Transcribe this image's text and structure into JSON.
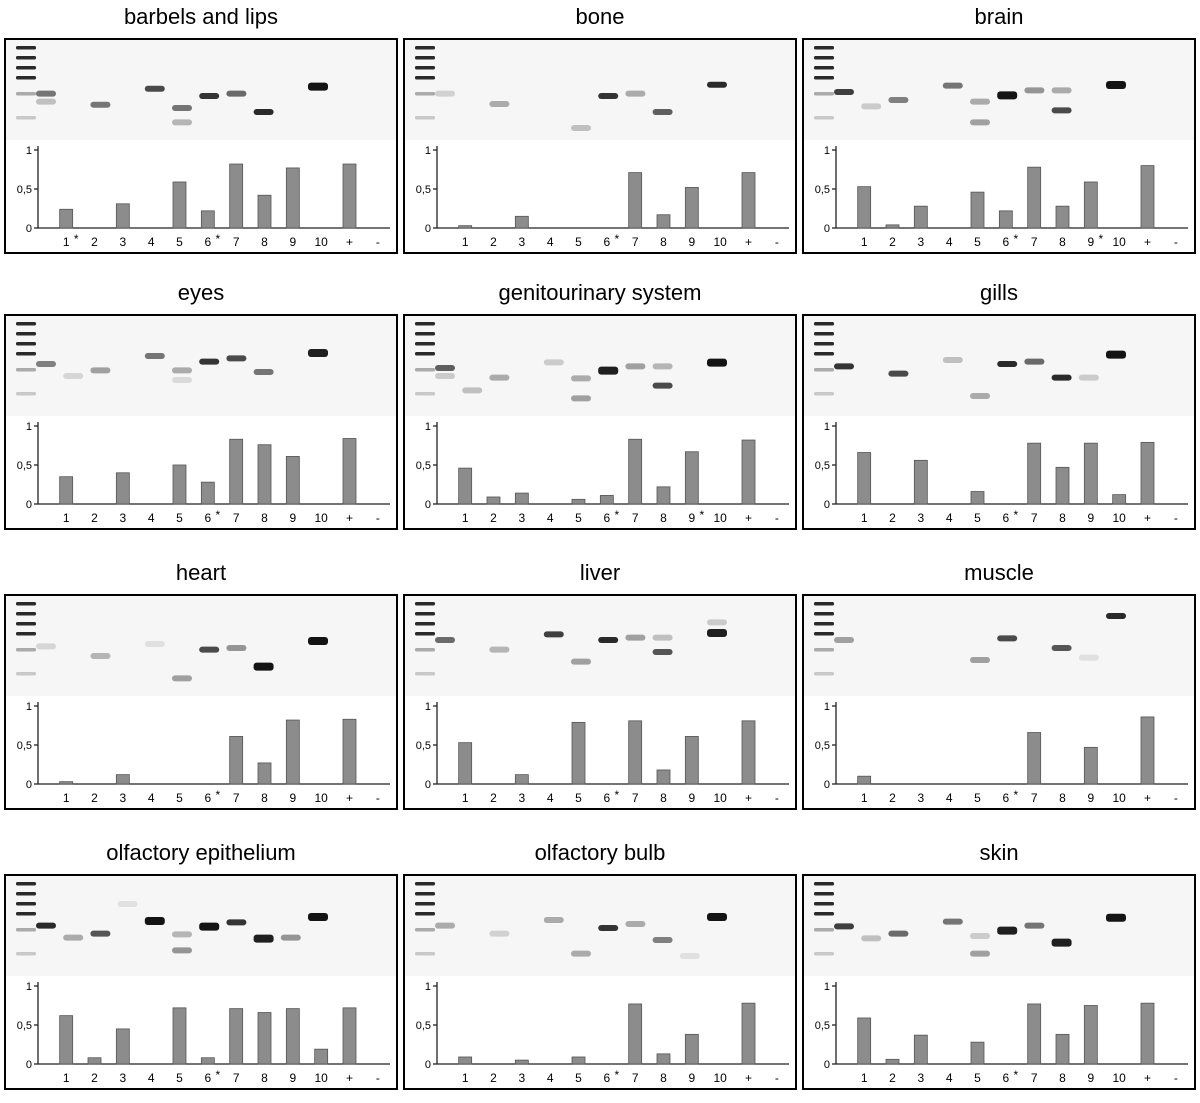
{
  "panel_titles": [
    "barbels and lips",
    "bone",
    "brain",
    "eyes",
    "genitourinary system",
    "gills",
    "heart",
    "liver",
    "muscle",
    "olfactory epithelium",
    "olfactory bulb",
    "skin"
  ],
  "chart_data": [
    {
      "type": "bar",
      "title": "barbels and lips",
      "categories": [
        "1",
        "2",
        "3",
        "4",
        "5",
        "6",
        "7",
        "8",
        "9",
        "10",
        "+",
        "-"
      ],
      "values": [
        0.24,
        0,
        0.31,
        0,
        0.59,
        0.22,
        0.82,
        0.42,
        0.77,
        0,
        0.82,
        0
      ],
      "asterisk_lanes": [
        "1",
        "6"
      ],
      "ylim": [
        0,
        1
      ],
      "yticks": [
        "0",
        "0,5",
        "1"
      ],
      "bar_color": "#8c8c8c",
      "bands": [
        {
          "lane": 1,
          "level": 0.52,
          "intensity": 0.55
        },
        {
          "lane": 1,
          "level": 0.62,
          "intensity": 0.2
        },
        {
          "lane": 3,
          "level": 0.66,
          "intensity": 0.55
        },
        {
          "lane": 5,
          "level": 0.46,
          "intensity": 0.75
        },
        {
          "lane": 6,
          "level": 0.7,
          "intensity": 0.55
        },
        {
          "lane": 6,
          "level": 0.88,
          "intensity": 0.25
        },
        {
          "lane": 7,
          "level": 0.55,
          "intensity": 0.85
        },
        {
          "lane": 8,
          "level": 0.52,
          "intensity": 0.6
        },
        {
          "lane": 9,
          "level": 0.75,
          "intensity": 0.9
        },
        {
          "lane": 11,
          "level": 0.42,
          "intensity": 1
        }
      ]
    },
    {
      "type": "bar",
      "title": "bone",
      "categories": [
        "1",
        "2",
        "3",
        "4",
        "5",
        "6",
        "7",
        "8",
        "9",
        "10",
        "+",
        "-"
      ],
      "values": [
        0.03,
        0,
        0.15,
        0,
        0,
        0,
        0.71,
        0.17,
        0.52,
        0,
        0.71,
        0
      ],
      "asterisk_lanes": [
        "6"
      ],
      "ylim": [
        0,
        1
      ],
      "yticks": [
        "0",
        "0,5",
        "1"
      ],
      "bar_color": "#8c8c8c",
      "bands": [
        {
          "lane": 1,
          "level": 0.52,
          "intensity": 0.12
        },
        {
          "lane": 3,
          "level": 0.65,
          "intensity": 0.3
        },
        {
          "lane": 6,
          "level": 0.95,
          "intensity": 0.2
        },
        {
          "lane": 7,
          "level": 0.55,
          "intensity": 0.85
        },
        {
          "lane": 8,
          "level": 0.52,
          "intensity": 0.3
        },
        {
          "lane": 9,
          "level": 0.75,
          "intensity": 0.65
        },
        {
          "lane": 11,
          "level": 0.41,
          "intensity": 0.9
        }
      ]
    },
    {
      "type": "bar",
      "title": "brain",
      "categories": [
        "1",
        "2",
        "3",
        "4",
        "5",
        "6",
        "7",
        "8",
        "9",
        "10",
        "+",
        "-"
      ],
      "values": [
        0.53,
        0.04,
        0.28,
        0,
        0.46,
        0.22,
        0.78,
        0.28,
        0.59,
        0,
        0.8,
        0
      ],
      "asterisk_lanes": [
        "6",
        "9"
      ],
      "ylim": [
        0,
        1
      ],
      "yticks": [
        "0",
        "0,5",
        "1"
      ],
      "bar_color": "#8c8c8c",
      "bands": [
        {
          "lane": 1,
          "level": 0.5,
          "intensity": 0.8
        },
        {
          "lane": 2,
          "level": 0.68,
          "intensity": 0.15
        },
        {
          "lane": 3,
          "level": 0.6,
          "intensity": 0.5
        },
        {
          "lane": 5,
          "level": 0.42,
          "intensity": 0.55
        },
        {
          "lane": 6,
          "level": 0.62,
          "intensity": 0.3
        },
        {
          "lane": 6,
          "level": 0.88,
          "intensity": 0.35
        },
        {
          "lane": 7,
          "level": 0.53,
          "intensity": 1
        },
        {
          "lane": 8,
          "level": 0.48,
          "intensity": 0.4
        },
        {
          "lane": 9,
          "level": 0.48,
          "intensity": 0.3
        },
        {
          "lane": 9,
          "level": 0.73,
          "intensity": 0.75
        },
        {
          "lane": 11,
          "level": 0.4,
          "intensity": 1
        }
      ]
    },
    {
      "type": "bar",
      "title": "eyes",
      "categories": [
        "1",
        "2",
        "3",
        "4",
        "5",
        "6",
        "7",
        "8",
        "9",
        "10",
        "+",
        "-"
      ],
      "values": [
        0.35,
        0,
        0.4,
        0,
        0.5,
        0.28,
        0.83,
        0.76,
        0.61,
        0,
        0.84,
        0
      ],
      "asterisk_lanes": [
        "6"
      ],
      "ylim": [
        0,
        1
      ],
      "yticks": [
        "0",
        "0,5",
        "1"
      ],
      "bar_color": "#8c8c8c",
      "bands": [
        {
          "lane": 1,
          "level": 0.45,
          "intensity": 0.5
        },
        {
          "lane": 2,
          "level": 0.6,
          "intensity": 0.1
        },
        {
          "lane": 3,
          "level": 0.53,
          "intensity": 0.35
        },
        {
          "lane": 5,
          "level": 0.35,
          "intensity": 0.55
        },
        {
          "lane": 6,
          "level": 0.53,
          "intensity": 0.3
        },
        {
          "lane": 6,
          "level": 0.65,
          "intensity": 0.08
        },
        {
          "lane": 7,
          "level": 0.42,
          "intensity": 0.85
        },
        {
          "lane": 8,
          "level": 0.38,
          "intensity": 0.75
        },
        {
          "lane": 9,
          "level": 0.55,
          "intensity": 0.55
        },
        {
          "lane": 11,
          "level": 0.3,
          "intensity": 0.95
        }
      ]
    },
    {
      "type": "bar",
      "title": "genitourinary system",
      "categories": [
        "1",
        "2",
        "3",
        "4",
        "5",
        "6",
        "7",
        "8",
        "9",
        "10",
        "+",
        "-"
      ],
      "values": [
        0.46,
        0.09,
        0.14,
        0,
        0.06,
        0.11,
        0.83,
        0.22,
        0.67,
        0,
        0.82,
        0
      ],
      "asterisk_lanes": [
        "6",
        "9"
      ],
      "ylim": [
        0,
        1
      ],
      "yticks": [
        "0",
        "0,5",
        "1"
      ],
      "bar_color": "#8c8c8c",
      "bands": [
        {
          "lane": 1,
          "level": 0.5,
          "intensity": 0.65
        },
        {
          "lane": 1,
          "level": 0.6,
          "intensity": 0.15
        },
        {
          "lane": 2,
          "level": 0.78,
          "intensity": 0.2
        },
        {
          "lane": 3,
          "level": 0.62,
          "intensity": 0.3
        },
        {
          "lane": 5,
          "level": 0.43,
          "intensity": 0.15
        },
        {
          "lane": 6,
          "level": 0.63,
          "intensity": 0.3
        },
        {
          "lane": 6,
          "level": 0.88,
          "intensity": 0.35
        },
        {
          "lane": 7,
          "level": 0.52,
          "intensity": 0.95
        },
        {
          "lane": 8,
          "level": 0.48,
          "intensity": 0.35
        },
        {
          "lane": 9,
          "level": 0.48,
          "intensity": 0.25
        },
        {
          "lane": 9,
          "level": 0.72,
          "intensity": 0.75
        },
        {
          "lane": 11,
          "level": 0.42,
          "intensity": 1
        }
      ]
    },
    {
      "type": "bar",
      "title": "gills",
      "categories": [
        "1",
        "2",
        "3",
        "4",
        "5",
        "6",
        "7",
        "8",
        "9",
        "10",
        "+",
        "-"
      ],
      "values": [
        0.66,
        0,
        0.56,
        0,
        0.16,
        0,
        0.78,
        0.47,
        0.78,
        0.12,
        0.79,
        0
      ],
      "asterisk_lanes": [
        "6"
      ],
      "ylim": [
        0,
        1
      ],
      "yticks": [
        "0",
        "0,5",
        "1"
      ],
      "bar_color": "#8c8c8c",
      "bands": [
        {
          "lane": 1,
          "level": 0.48,
          "intensity": 0.85
        },
        {
          "lane": 3,
          "level": 0.57,
          "intensity": 0.75
        },
        {
          "lane": 5,
          "level": 0.4,
          "intensity": 0.2
        },
        {
          "lane": 6,
          "level": 0.85,
          "intensity": 0.3
        },
        {
          "lane": 7,
          "level": 0.45,
          "intensity": 0.9
        },
        {
          "lane": 8,
          "level": 0.42,
          "intensity": 0.6
        },
        {
          "lane": 9,
          "level": 0.62,
          "intensity": 0.9
        },
        {
          "lane": 10,
          "level": 0.62,
          "intensity": 0.15
        },
        {
          "lane": 11,
          "level": 0.32,
          "intensity": 1
        }
      ]
    },
    {
      "type": "bar",
      "title": "heart",
      "categories": [
        "1",
        "2",
        "3",
        "4",
        "5",
        "6",
        "7",
        "8",
        "9",
        "10",
        "+",
        "-"
      ],
      "values": [
        0.03,
        0,
        0.12,
        0,
        0,
        0,
        0.61,
        0.27,
        0.82,
        0,
        0.83,
        0
      ],
      "asterisk_lanes": [
        "6"
      ],
      "ylim": [
        0,
        1
      ],
      "yticks": [
        "0",
        "0,5",
        "1"
      ],
      "bar_color": "#8c8c8c",
      "bands": [
        {
          "lane": 1,
          "level": 0.48,
          "intensity": 0.1
        },
        {
          "lane": 3,
          "level": 0.6,
          "intensity": 0.25
        },
        {
          "lane": 5,
          "level": 0.45,
          "intensity": 0.05
        },
        {
          "lane": 6,
          "level": 0.88,
          "intensity": 0.35
        },
        {
          "lane": 7,
          "level": 0.52,
          "intensity": 0.75
        },
        {
          "lane": 8,
          "level": 0.5,
          "intensity": 0.4
        },
        {
          "lane": 9,
          "level": 0.72,
          "intensity": 1
        },
        {
          "lane": 11,
          "level": 0.4,
          "intensity": 1
        }
      ]
    },
    {
      "type": "bar",
      "title": "liver",
      "categories": [
        "1",
        "2",
        "3",
        "4",
        "5",
        "6",
        "7",
        "8",
        "9",
        "10",
        "+",
        "-"
      ],
      "values": [
        0.53,
        0,
        0.12,
        0,
        0.79,
        0,
        0.81,
        0.18,
        0.61,
        0,
        0.81,
        0
      ],
      "asterisk_lanes": [
        "6"
      ],
      "ylim": [
        0,
        1
      ],
      "yticks": [
        "0",
        "0,5",
        "1"
      ],
      "bar_color": "#8c8c8c",
      "bands": [
        {
          "lane": 1,
          "level": 0.4,
          "intensity": 0.6
        },
        {
          "lane": 3,
          "level": 0.52,
          "intensity": 0.25
        },
        {
          "lane": 5,
          "level": 0.33,
          "intensity": 0.8
        },
        {
          "lane": 6,
          "level": 0.67,
          "intensity": 0.35
        },
        {
          "lane": 7,
          "level": 0.4,
          "intensity": 0.9
        },
        {
          "lane": 8,
          "level": 0.37,
          "intensity": 0.35
        },
        {
          "lane": 9,
          "level": 0.37,
          "intensity": 0.2
        },
        {
          "lane": 9,
          "level": 0.55,
          "intensity": 0.7
        },
        {
          "lane": 11,
          "level": 0.18,
          "intensity": 0.15
        },
        {
          "lane": 11,
          "level": 0.3,
          "intensity": 0.95
        }
      ]
    },
    {
      "type": "bar",
      "title": "muscle",
      "categories": [
        "1",
        "2",
        "3",
        "4",
        "5",
        "6",
        "7",
        "8",
        "9",
        "10",
        "+",
        "-"
      ],
      "values": [
        0.1,
        0,
        0,
        0,
        0,
        0,
        0.66,
        0,
        0.47,
        0,
        0.86,
        0
      ],
      "asterisk_lanes": [
        "6"
      ],
      "ylim": [
        0,
        1
      ],
      "yticks": [
        "0",
        "0,5",
        "1"
      ],
      "bar_color": "#8c8c8c",
      "bands": [
        {
          "lane": 1,
          "level": 0.4,
          "intensity": 0.35
        },
        {
          "lane": 6,
          "level": 0.65,
          "intensity": 0.35
        },
        {
          "lane": 7,
          "level": 0.38,
          "intensity": 0.75
        },
        {
          "lane": 9,
          "level": 0.5,
          "intensity": 0.7
        },
        {
          "lane": 10,
          "level": 0.62,
          "intensity": 0.05
        },
        {
          "lane": 11,
          "level": 0.1,
          "intensity": 0.9
        }
      ]
    },
    {
      "type": "bar",
      "title": "olfactory epithelium",
      "categories": [
        "1",
        "2",
        "3",
        "4",
        "5",
        "6",
        "7",
        "8",
        "9",
        "10",
        "+",
        "-"
      ],
      "values": [
        0.62,
        0.08,
        0.45,
        0,
        0.72,
        0.08,
        0.71,
        0.66,
        0.71,
        0.19,
        0.72,
        0
      ],
      "asterisk_lanes": [
        "6"
      ],
      "ylim": [
        0,
        1
      ],
      "yticks": [
        "0",
        "0,5",
        "1"
      ],
      "bar_color": "#8c8c8c",
      "bands": [
        {
          "lane": 1,
          "level": 0.47,
          "intensity": 0.9
        },
        {
          "lane": 2,
          "level": 0.62,
          "intensity": 0.3
        },
        {
          "lane": 3,
          "level": 0.57,
          "intensity": 0.7
        },
        {
          "lane": 4,
          "level": 0.2,
          "intensity": 0.05
        },
        {
          "lane": 5,
          "level": 0.4,
          "intensity": 1
        },
        {
          "lane": 6,
          "level": 0.58,
          "intensity": 0.25
        },
        {
          "lane": 6,
          "level": 0.78,
          "intensity": 0.4
        },
        {
          "lane": 7,
          "level": 0.47,
          "intensity": 1
        },
        {
          "lane": 8,
          "level": 0.43,
          "intensity": 0.85
        },
        {
          "lane": 9,
          "level": 0.62,
          "intensity": 0.95
        },
        {
          "lane": 10,
          "level": 0.62,
          "intensity": 0.4
        },
        {
          "lane": 11,
          "level": 0.35,
          "intensity": 1
        }
      ]
    },
    {
      "type": "bar",
      "title": "olfactory bulb",
      "categories": [
        "1",
        "2",
        "3",
        "4",
        "5",
        "6",
        "7",
        "8",
        "9",
        "10",
        "+",
        "-"
      ],
      "values": [
        0.09,
        0,
        0.05,
        0,
        0.09,
        0,
        0.77,
        0.13,
        0.38,
        0,
        0.78,
        0
      ],
      "asterisk_lanes": [
        "6"
      ],
      "ylim": [
        0,
        1
      ],
      "yticks": [
        "0",
        "0,5",
        "1"
      ],
      "bar_color": "#8c8c8c",
      "bands": [
        {
          "lane": 1,
          "level": 0.47,
          "intensity": 0.3
        },
        {
          "lane": 3,
          "level": 0.57,
          "intensity": 0.12
        },
        {
          "lane": 5,
          "level": 0.4,
          "intensity": 0.3
        },
        {
          "lane": 6,
          "level": 0.82,
          "intensity": 0.3
        },
        {
          "lane": 7,
          "level": 0.5,
          "intensity": 0.85
        },
        {
          "lane": 8,
          "level": 0.45,
          "intensity": 0.3
        },
        {
          "lane": 9,
          "level": 0.65,
          "intensity": 0.5
        },
        {
          "lane": 10,
          "level": 0.85,
          "intensity": 0.05
        },
        {
          "lane": 11,
          "level": 0.35,
          "intensity": 1
        }
      ]
    },
    {
      "type": "bar",
      "title": "skin",
      "categories": [
        "1",
        "2",
        "3",
        "4",
        "5",
        "6",
        "7",
        "8",
        "9",
        "10",
        "+",
        "-"
      ],
      "values": [
        0.59,
        0.06,
        0.37,
        0,
        0.28,
        0,
        0.77,
        0.38,
        0.75,
        0,
        0.78,
        0
      ],
      "asterisk_lanes": [
        "6"
      ],
      "ylim": [
        0,
        1
      ],
      "yticks": [
        "0",
        "0,5",
        "1"
      ],
      "bar_color": "#8c8c8c",
      "bands": [
        {
          "lane": 1,
          "level": 0.48,
          "intensity": 0.8
        },
        {
          "lane": 2,
          "level": 0.63,
          "intensity": 0.2
        },
        {
          "lane": 3,
          "level": 0.57,
          "intensity": 0.6
        },
        {
          "lane": 5,
          "level": 0.42,
          "intensity": 0.55
        },
        {
          "lane": 6,
          "level": 0.6,
          "intensity": 0.15
        },
        {
          "lane": 6,
          "level": 0.82,
          "intensity": 0.35
        },
        {
          "lane": 7,
          "level": 0.52,
          "intensity": 0.95
        },
        {
          "lane": 8,
          "level": 0.47,
          "intensity": 0.55
        },
        {
          "lane": 9,
          "level": 0.67,
          "intensity": 0.95
        },
        {
          "lane": 11,
          "level": 0.36,
          "intensity": 1
        }
      ]
    }
  ]
}
